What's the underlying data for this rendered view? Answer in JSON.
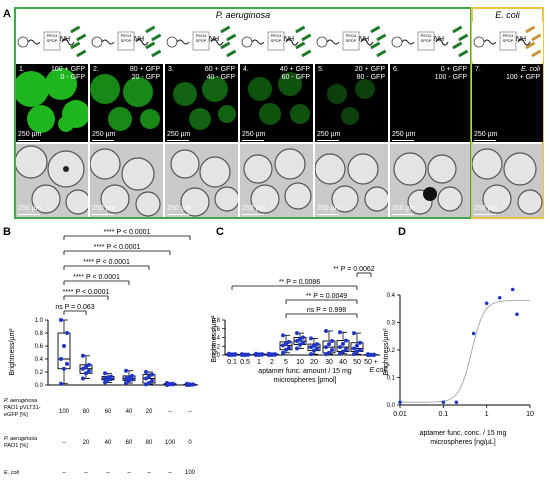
{
  "panel_letters": {
    "a": "A",
    "b": "B",
    "c": "C",
    "d": "D"
  },
  "panel_a": {
    "species_left": "P. aeruginosa",
    "species_right": "E. coli",
    "scale_label": "250 µm",
    "schematic_text": {
      "peg": "PEG4",
      "spdp": "SPDP",
      "nh": "NH"
    },
    "wells": [
      {
        "n": "1.",
        "line1": "100 + GFP",
        "line2": "0 - GFP"
      },
      {
        "n": "2.",
        "line1": "80 + GFP",
        "line2": "20 - GFP"
      },
      {
        "n": "3.",
        "line1": "60 + GFP",
        "line2": "40 - GFP"
      },
      {
        "n": "4.",
        "line1": "40 + GFP",
        "line2": "60 - GFP"
      },
      {
        "n": "5.",
        "line1": "20 + GFP",
        "line2": "80 - GFP"
      },
      {
        "n": "6.",
        "line1": "0 + GFP",
        "line2": "100 - GFP"
      },
      {
        "n": "7.",
        "line1": "E. coli",
        "line2": "100 + GFP"
      }
    ],
    "colors": {
      "green_frame": "#3fa84a",
      "yellow_frame": "#e8c547",
      "gfp": "#1fb51f"
    }
  },
  "panel_b": {
    "ylabel": "Brightness/µm²",
    "sig": [
      "**** P < 0.0001",
      "**** P < 0.0001",
      "**** P < 0.0001",
      "**** P < 0.0001",
      "**** P < 0.0001",
      "ns P = 0.063"
    ],
    "table": {
      "row1_label": [
        "P. aeruginosa",
        "PAO1 pVLT31-",
        "eGFP [%]"
      ],
      "row1": [
        "100",
        "80",
        "60",
        "40",
        "20",
        "–",
        "–"
      ],
      "row2_label": [
        "P. aeruginosa",
        "PAO1 [%]"
      ],
      "row2": [
        "–",
        "20",
        "40",
        "60",
        "80",
        "100",
        "0"
      ],
      "row3_label": [
        "E. coli"
      ],
      "row3": [
        "–",
        "–",
        "–",
        "–",
        "–",
        "–",
        "100"
      ]
    }
  },
  "panel_c": {
    "ylabel": "Brightness/µm²",
    "xlabel1": "aptamer func. amount / 15 mg",
    "xlabel2": "microspheres [pmol]",
    "sig": [
      "** P = 0.0062",
      "** P = 0.0086",
      "** P = 0.0049",
      "ns P = 0.998"
    ]
  },
  "panel_d": {
    "ylabel": "Brightness/µm²",
    "xlabel1": "aptamer func. conc. / 15 mg",
    "xlabel2": "microspheres [ng/µL]"
  },
  "chart_data": [
    {
      "type": "box",
      "ylabel": "Brightness/µm²",
      "ylim": [
        0,
        1.0
      ],
      "yticks": [
        "0.0",
        "0.2",
        "0.4",
        "0.6",
        "0.8",
        "1.0"
      ],
      "categories": [
        "100/–",
        "80/20",
        "60/40",
        "40/60",
        "20/80",
        "–/100",
        "E. coli"
      ],
      "boxes": [
        {
          "q1": 0.25,
          "median": 0.4,
          "q3": 0.8,
          "min": 0.02,
          "max": 1.0
        },
        {
          "q1": 0.18,
          "median": 0.25,
          "q3": 0.31,
          "min": 0.1,
          "max": 0.45
        },
        {
          "q1": 0.08,
          "median": 0.1,
          "q3": 0.13,
          "min": 0.04,
          "max": 0.18
        },
        {
          "q1": 0.07,
          "median": 0.1,
          "q3": 0.14,
          "min": 0.03,
          "max": 0.22
        },
        {
          "q1": 0.03,
          "median": 0.1,
          "q3": 0.16,
          "min": 0.01,
          "max": 0.2
        },
        {
          "q1": 0.01,
          "median": 0.01,
          "q3": 0.02,
          "min": 0.0,
          "max": 0.03
        },
        {
          "q1": 0.0,
          "median": 0.01,
          "q3": 0.01,
          "min": 0.0,
          "max": 0.02
        }
      ]
    },
    {
      "type": "box",
      "ylabel": "Brightness/µm²",
      "ylim": [
        0,
        0.8
      ],
      "yticks": [
        "0.0",
        "0.2",
        "0.4",
        "0.6",
        "0.8"
      ],
      "categories": [
        "0.1",
        "0.5",
        "1",
        "2",
        "5",
        "10",
        "20",
        "30",
        "40",
        "50",
        "50 + E.coli"
      ],
      "boxes": [
        {
          "q1": 0.0,
          "median": 0.01,
          "q3": 0.02,
          "min": 0.0,
          "max": 0.03
        },
        {
          "q1": 0.0,
          "median": 0.01,
          "q3": 0.01,
          "min": 0.0,
          "max": 0.02
        },
        {
          "q1": 0.0,
          "median": 0.01,
          "q3": 0.02,
          "min": 0.0,
          "max": 0.03
        },
        {
          "q1": 0.0,
          "median": 0.01,
          "q3": 0.02,
          "min": 0.0,
          "max": 0.03
        },
        {
          "q1": 0.12,
          "median": 0.22,
          "q3": 0.3,
          "min": 0.05,
          "max": 0.45
        },
        {
          "q1": 0.24,
          "median": 0.32,
          "q3": 0.4,
          "min": 0.15,
          "max": 0.5
        },
        {
          "q1": 0.1,
          "median": 0.18,
          "q3": 0.25,
          "min": 0.02,
          "max": 0.38
        },
        {
          "q1": 0.05,
          "median": 0.18,
          "q3": 0.32,
          "min": 0.02,
          "max": 0.55
        },
        {
          "q1": 0.08,
          "median": 0.18,
          "q3": 0.33,
          "min": 0.03,
          "max": 0.52
        },
        {
          "q1": 0.08,
          "median": 0.15,
          "q3": 0.28,
          "min": 0.02,
          "max": 0.5
        },
        {
          "q1": 0.0,
          "median": 0.0,
          "q3": 0.01,
          "min": 0.0,
          "max": 0.02
        }
      ]
    },
    {
      "type": "scatter",
      "ylabel": "Brightness/µm²",
      "xscale": "log",
      "xlim": [
        0.01,
        10
      ],
      "ylim": [
        0,
        0.4
      ],
      "xticks": [
        "0.01",
        "0.1",
        "1",
        "10"
      ],
      "yticks": [
        "0.0",
        "0.1",
        "0.2",
        "0.3",
        "0.4"
      ],
      "x": [
        0.01,
        0.1,
        0.2,
        0.5,
        1,
        2,
        4,
        5
      ],
      "y": [
        0.01,
        0.01,
        0.01,
        0.26,
        0.37,
        0.39,
        0.42,
        0.33
      ],
      "fit": "sigmoidal"
    }
  ]
}
